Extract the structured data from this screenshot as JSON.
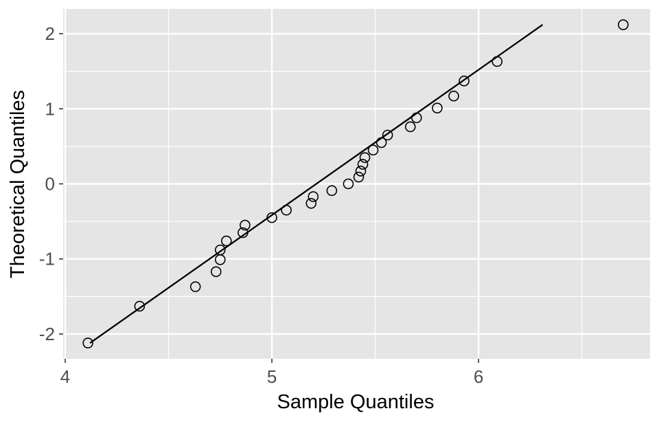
{
  "chart_data": {
    "type": "scatter",
    "title": "",
    "xlabel": "Sample Quantiles",
    "ylabel": "Theoretical Quantiles",
    "xlim": [
      3.99,
      6.83
    ],
    "ylim": [
      -2.33,
      2.33
    ],
    "x_ticks": [
      4,
      5,
      6
    ],
    "x_tick_labels": [
      "4",
      "5",
      "6"
    ],
    "y_ticks": [
      -2,
      -1,
      0,
      1,
      2
    ],
    "y_tick_labels": [
      "-2",
      "-1",
      "0",
      "1",
      "2"
    ],
    "grid": true,
    "legend": "none",
    "colors": {
      "panel": "#e5e5e5",
      "grid": "#ffffff",
      "points": "#000000",
      "line": "#000000",
      "ticks": "#4d4d4d"
    },
    "series": [
      {
        "kind": "points",
        "x": [
          4.11,
          4.36,
          4.63,
          4.73,
          4.75,
          4.75,
          4.78,
          4.86,
          4.87,
          5.0,
          5.07,
          5.19,
          5.2,
          5.29,
          5.37,
          5.42,
          5.43,
          5.44,
          5.45,
          5.49,
          5.53,
          5.56,
          5.67,
          5.7,
          5.8,
          5.88,
          5.93,
          6.09,
          6.7
        ],
        "y": [
          -2.12,
          -1.63,
          -1.37,
          -1.17,
          -1.01,
          -0.88,
          -0.76,
          -0.65,
          -0.55,
          -0.45,
          -0.35,
          -0.26,
          -0.17,
          -0.09,
          0.0,
          0.09,
          0.17,
          0.26,
          0.35,
          0.45,
          0.55,
          0.65,
          0.76,
          0.88,
          1.01,
          1.17,
          1.37,
          1.63,
          2.12
        ]
      },
      {
        "kind": "line",
        "x": [
          4.12,
          6.31
        ],
        "y": [
          -2.12,
          2.12
        ]
      }
    ]
  }
}
